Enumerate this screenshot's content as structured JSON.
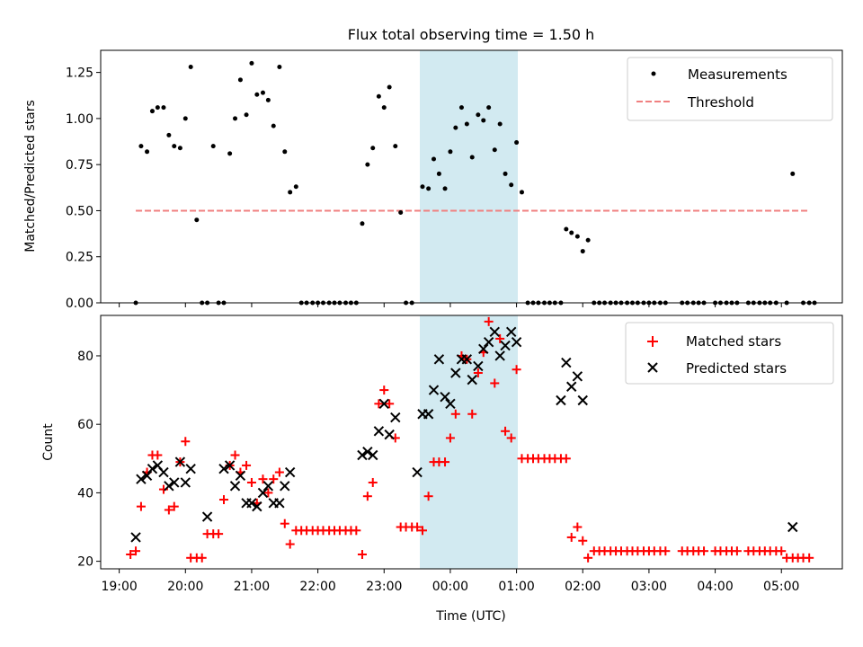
{
  "chart_data": [
    {
      "type": "scatter",
      "title": "Flux total observing time = 1.50 h",
      "xlabel": "",
      "ylabel": "Matched/Predicted stars",
      "xlim": [
        18.72,
        29.92
      ],
      "ylim": [
        0,
        1.37
      ],
      "yticks": [
        0,
        0.25,
        0.5,
        0.75,
        1.0,
        1.25
      ],
      "ytick_labels": [
        "0.00",
        "0.25",
        "0.50",
        "0.75",
        "1.00",
        "1.25"
      ],
      "highlight_span": [
        23.5,
        25.0
      ],
      "legend": {
        "position": "top-right",
        "entries": [
          "Measurements",
          "Threshold"
        ]
      },
      "series": [
        {
          "name": "Measurements",
          "marker": "dot",
          "color": "#000000",
          "x": [
            19.25,
            19.33,
            19.42,
            19.5,
            19.58,
            19.67,
            19.75,
            19.83,
            19.92,
            20.0,
            20.08,
            20.17,
            20.25,
            20.33,
            20.42,
            20.5,
            20.58,
            20.67,
            20.75,
            20.83,
            20.92,
            21.0,
            21.08,
            21.17,
            21.25,
            21.33,
            21.42,
            21.5,
            21.58,
            21.67,
            21.75,
            21.83,
            21.92,
            22.0,
            22.08,
            22.17,
            22.25,
            22.33,
            22.42,
            22.5,
            22.58,
            22.67,
            22.75,
            22.83,
            22.92,
            23.0,
            23.08,
            23.17,
            23.25,
            23.33,
            23.42,
            23.58,
            23.67,
            23.75,
            23.83,
            23.92,
            24.0,
            24.08,
            24.17,
            24.25,
            24.33,
            24.42,
            24.5,
            24.58,
            24.67,
            24.75,
            24.83,
            24.92,
            25.0,
            25.08,
            25.17,
            25.25,
            25.33,
            25.42,
            25.5,
            25.58,
            25.67,
            25.75,
            25.83,
            25.92,
            26.0,
            26.08,
            26.17,
            26.25,
            26.33,
            26.42,
            26.5,
            26.58,
            26.67,
            26.75,
            26.83,
            26.92,
            27.0,
            27.08,
            27.17,
            27.25,
            27.5,
            27.58,
            27.67,
            27.75,
            27.83,
            28.0,
            28.08,
            28.17,
            28.25,
            28.33,
            28.5,
            28.58,
            28.67,
            28.75,
            28.83,
            28.92,
            29.08,
            29.17,
            29.33,
            29.42,
            29.5
          ],
          "y": [
            0.0,
            0.85,
            0.82,
            1.04,
            1.06,
            1.06,
            0.91,
            0.85,
            0.84,
            1.0,
            1.28,
            0.45,
            0.0,
            0.0,
            0.85,
            0.0,
            0.0,
            0.81,
            1.0,
            1.21,
            1.02,
            1.3,
            1.13,
            1.14,
            1.1,
            0.96,
            1.28,
            0.82,
            0.6,
            0.63,
            0.0,
            0.0,
            0.0,
            0.0,
            0.0,
            0.0,
            0.0,
            0.0,
            0.0,
            0.0,
            0.0,
            0.43,
            0.75,
            0.84,
            1.12,
            1.06,
            1.17,
            0.85,
            0.49,
            0.0,
            0.0,
            0.63,
            0.62,
            0.78,
            0.7,
            0.62,
            0.82,
            0.95,
            1.06,
            0.97,
            0.79,
            1.02,
            0.99,
            1.06,
            0.83,
            0.97,
            0.7,
            0.64,
            0.87,
            0.6,
            0.0,
            0.0,
            0.0,
            0.0,
            0.0,
            0.0,
            0.0,
            0.4,
            0.38,
            0.36,
            0.28,
            0.34,
            0.0,
            0.0,
            0.0,
            0.0,
            0.0,
            0.0,
            0.0,
            0.0,
            0.0,
            0.0,
            0.0,
            0.0,
            0.0,
            0.0,
            0.0,
            0.0,
            0.0,
            0.0,
            0.0,
            0.0,
            0.0,
            0.0,
            0.0,
            0.0,
            0.0,
            0.0,
            0.0,
            0.0,
            0.0,
            0.0,
            0.0,
            0.7,
            0.0,
            0.0,
            0.0
          ]
        },
        {
          "name": "Threshold",
          "line": "dashed",
          "color": "#f08080",
          "x": [
            19.25,
            29.42
          ],
          "y": [
            0.5,
            0.5
          ]
        }
      ]
    },
    {
      "type": "scatter",
      "title": "",
      "xlabel": "Time (UTC)",
      "ylabel": "Count",
      "xlim": [
        18.72,
        29.92
      ],
      "ylim": [
        17.8,
        91.8
      ],
      "yticks": [
        20,
        40,
        60,
        80
      ],
      "ytick_labels": [
        "20",
        "40",
        "60",
        "80"
      ],
      "xticks": [
        19,
        20,
        21,
        22,
        23,
        24,
        25,
        26,
        27,
        28,
        29
      ],
      "xtick_labels": [
        "19:00",
        "20:00",
        "21:00",
        "22:00",
        "23:00",
        "00:00",
        "01:00",
        "02:00",
        "03:00",
        "04:00",
        "05:00"
      ],
      "highlight_span": [
        23.5,
        25.0
      ],
      "legend": {
        "position": "top-right",
        "entries": [
          "Matched stars",
          "Predicted stars"
        ]
      },
      "series": [
        {
          "name": "Matched stars",
          "marker": "plus",
          "color": "#ff0000",
          "x": [
            19.17,
            19.25,
            19.33,
            19.42,
            19.5,
            19.58,
            19.67,
            19.75,
            19.83,
            19.92,
            20.0,
            20.08,
            20.17,
            20.25,
            20.33,
            20.42,
            20.5,
            20.58,
            20.67,
            20.75,
            20.83,
            20.92,
            21.0,
            21.08,
            21.17,
            21.25,
            21.33,
            21.42,
            21.5,
            21.58,
            21.67,
            21.75,
            21.83,
            21.92,
            22.0,
            22.08,
            22.17,
            22.25,
            22.33,
            22.42,
            22.5,
            22.58,
            22.67,
            22.75,
            22.83,
            22.92,
            23.0,
            23.08,
            23.17,
            23.25,
            23.33,
            23.42,
            23.5,
            23.58,
            23.67,
            23.75,
            23.83,
            23.92,
            24.0,
            24.08,
            24.17,
            24.25,
            24.33,
            24.42,
            24.5,
            24.58,
            24.67,
            24.75,
            24.83,
            24.92,
            25.0,
            25.08,
            25.17,
            25.25,
            25.33,
            25.42,
            25.5,
            25.58,
            25.67,
            25.75,
            25.83,
            25.92,
            26.0,
            26.08,
            26.17,
            26.25,
            26.33,
            26.42,
            26.5,
            26.58,
            26.67,
            26.75,
            26.83,
            26.92,
            27.0,
            27.08,
            27.17,
            27.25,
            27.5,
            27.58,
            27.67,
            27.75,
            27.83,
            28.0,
            28.08,
            28.17,
            28.25,
            28.33,
            28.5,
            28.58,
            28.67,
            28.75,
            28.83,
            28.92,
            29.0,
            29.08,
            29.17,
            29.25,
            29.33,
            29.42
          ],
          "y": [
            22,
            23,
            36,
            46,
            51,
            51,
            41,
            35,
            36,
            49,
            55,
            21,
            21,
            21,
            28,
            28,
            28,
            38,
            48,
            51,
            46,
            48,
            43,
            37,
            44,
            40,
            44,
            46,
            31,
            25,
            29,
            29,
            29,
            29,
            29,
            29,
            29,
            29,
            29,
            29,
            29,
            29,
            22,
            39,
            43,
            66,
            70,
            66,
            56,
            30,
            30,
            30,
            30,
            29,
            39,
            49,
            49,
            49,
            56,
            63,
            80,
            79,
            63,
            75,
            81,
            90,
            72,
            85,
            58,
            56,
            76,
            50,
            50,
            50,
            50,
            50,
            50,
            50,
            50,
            50,
            27,
            30,
            26,
            21,
            23,
            23,
            23,
            23,
            23,
            23,
            23,
            23,
            23,
            23,
            23,
            23,
            23,
            23,
            23,
            23,
            23,
            23,
            23,
            23,
            23,
            23,
            23,
            23,
            23,
            23,
            23,
            23,
            23,
            23,
            23,
            21,
            21,
            21,
            21,
            21
          ]
        },
        {
          "name": "Predicted stars",
          "marker": "x",
          "color": "#000000",
          "x": [
            19.25,
            19.33,
            19.42,
            19.5,
            19.58,
            19.67,
            19.75,
            19.83,
            19.92,
            20.0,
            20.08,
            20.33,
            20.58,
            20.67,
            20.75,
            20.83,
            20.92,
            21.0,
            21.08,
            21.17,
            21.25,
            21.33,
            21.42,
            21.5,
            21.58,
            22.67,
            22.75,
            22.83,
            22.92,
            23.0,
            23.08,
            23.17,
            23.5,
            23.58,
            23.67,
            23.75,
            23.83,
            23.92,
            24.0,
            24.08,
            24.17,
            24.25,
            24.33,
            24.42,
            24.5,
            24.58,
            24.67,
            24.75,
            24.83,
            24.92,
            25.0,
            25.67,
            25.75,
            25.83,
            25.92,
            26.0,
            29.17
          ],
          "y": [
            27,
            44,
            45,
            47,
            48,
            46,
            42,
            43,
            49,
            43,
            47,
            33,
            47,
            48,
            42,
            45,
            37,
            37,
            36,
            40,
            42,
            37,
            37,
            42,
            46,
            51,
            52,
            51,
            58,
            66,
            57,
            62,
            46,
            63,
            63,
            70,
            79,
            68,
            66,
            75,
            79,
            79,
            73,
            77,
            82,
            84,
            87,
            80,
            83,
            87,
            84,
            67,
            78,
            71,
            74,
            67,
            30
          ]
        }
      ]
    }
  ]
}
